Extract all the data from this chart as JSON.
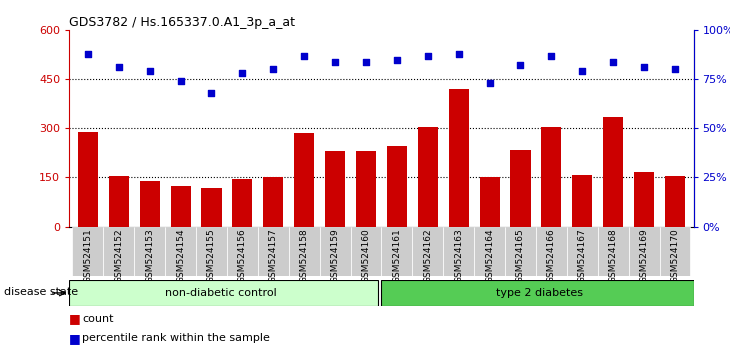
{
  "title": "GDS3782 / Hs.165337.0.A1_3p_a_at",
  "samples": [
    "GSM524151",
    "GSM524152",
    "GSM524153",
    "GSM524154",
    "GSM524155",
    "GSM524156",
    "GSM524157",
    "GSM524158",
    "GSM524159",
    "GSM524160",
    "GSM524161",
    "GSM524162",
    "GSM524163",
    "GSM524164",
    "GSM524165",
    "GSM524166",
    "GSM524167",
    "GSM524168",
    "GSM524169",
    "GSM524170"
  ],
  "bar_values": [
    290,
    155,
    140,
    125,
    118,
    145,
    150,
    285,
    230,
    230,
    245,
    305,
    420,
    152,
    235,
    305,
    157,
    335,
    167,
    155
  ],
  "dot_pct": [
    88,
    81,
    79,
    74,
    68,
    78,
    80,
    87,
    84,
    84,
    85,
    87,
    88,
    73,
    82,
    87,
    79,
    84,
    81,
    80
  ],
  "bar_color": "#cc0000",
  "dot_color": "#0000cc",
  "group1_label": "non-diabetic control",
  "group2_label": "type 2 diabetes",
  "group1_count": 10,
  "group2_count": 10,
  "group1_color": "#ccffcc",
  "group2_color": "#55cc55",
  "ylim_left": [
    0,
    600
  ],
  "ylim_right": [
    0,
    100
  ],
  "yticks_left": [
    0,
    150,
    300,
    450,
    600
  ],
  "yticks_right": [
    0,
    25,
    50,
    75,
    100
  ],
  "ytick_labels_left": [
    "0",
    "150",
    "300",
    "450",
    "600"
  ],
  "ytick_labels_right": [
    "0%",
    "25%",
    "50%",
    "75%",
    "100%"
  ],
  "grid_lines": [
    150,
    300,
    450
  ],
  "legend_count": "count",
  "legend_pct": "percentile rank within the sample",
  "disease_state_label": "disease state"
}
